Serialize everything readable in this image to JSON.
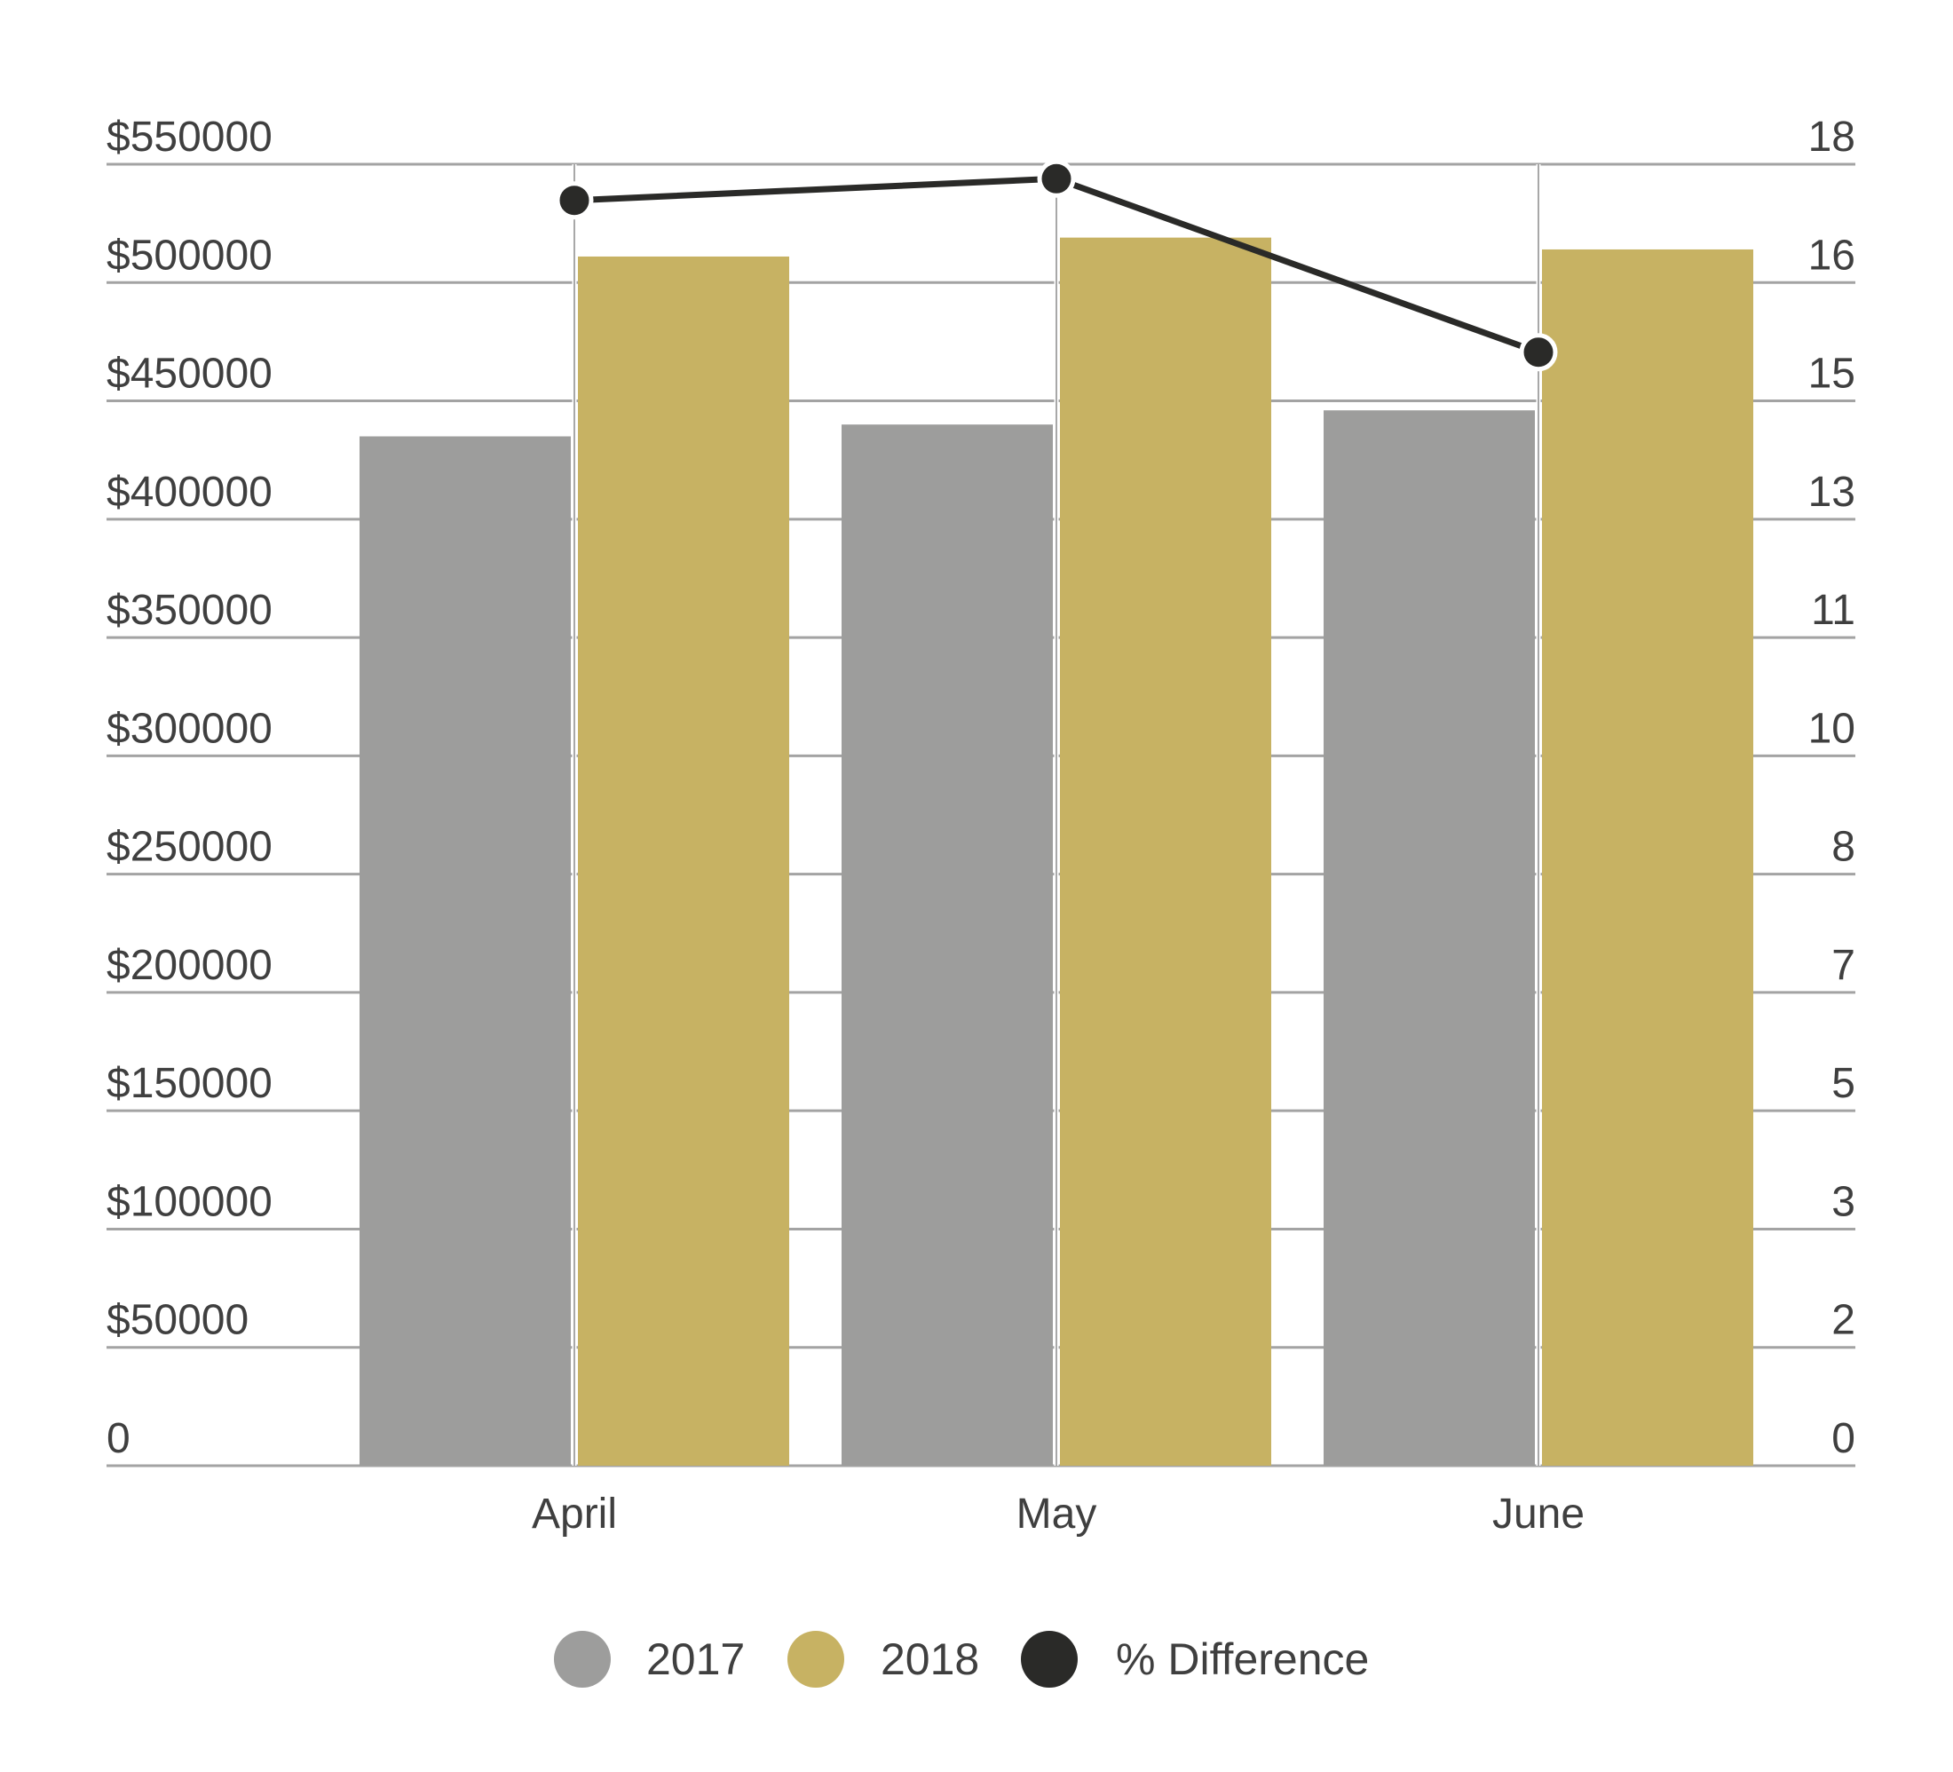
{
  "chart_data": {
    "type": "bar",
    "categories": [
      "April",
      "May",
      "June"
    ],
    "series": [
      {
        "name": "2017",
        "kind": "bar",
        "axis": "left",
        "color": "#9d9d9c",
        "values": [
          435000,
          440000,
          446000
        ]
      },
      {
        "name": "2018",
        "kind": "bar",
        "axis": "left",
        "color": "#c7b263",
        "values": [
          511000,
          519000,
          514000
        ]
      },
      {
        "name": "% Difference",
        "kind": "line",
        "axis": "right",
        "color": "#2a2a28",
        "values": [
          17.5,
          17.8,
          15.4
        ]
      }
    ],
    "left_axis": {
      "min": 0,
      "max": 550000,
      "ticks": [
        0,
        50000,
        100000,
        150000,
        200000,
        250000,
        300000,
        350000,
        400000,
        450000,
        500000,
        550000
      ],
      "tick_labels": [
        "0",
        "$50000",
        "$100000",
        "$150000",
        "$200000",
        "$250000",
        "$300000",
        "$350000",
        "$400000",
        "$450000",
        "$500000",
        "$550000"
      ]
    },
    "right_axis": {
      "tick_labels": [
        "0",
        "2",
        "3",
        "5",
        "7",
        "8",
        "10",
        "11",
        "13",
        "15",
        "16",
        "18"
      ]
    },
    "grid": true,
    "legend": {
      "position": "bottom",
      "entries": [
        {
          "label": "2017",
          "color": "#9d9d9c"
        },
        {
          "label": "2018",
          "color": "#c7b263"
        },
        {
          "label": "% Difference",
          "color": "#2a2a28"
        }
      ]
    }
  }
}
